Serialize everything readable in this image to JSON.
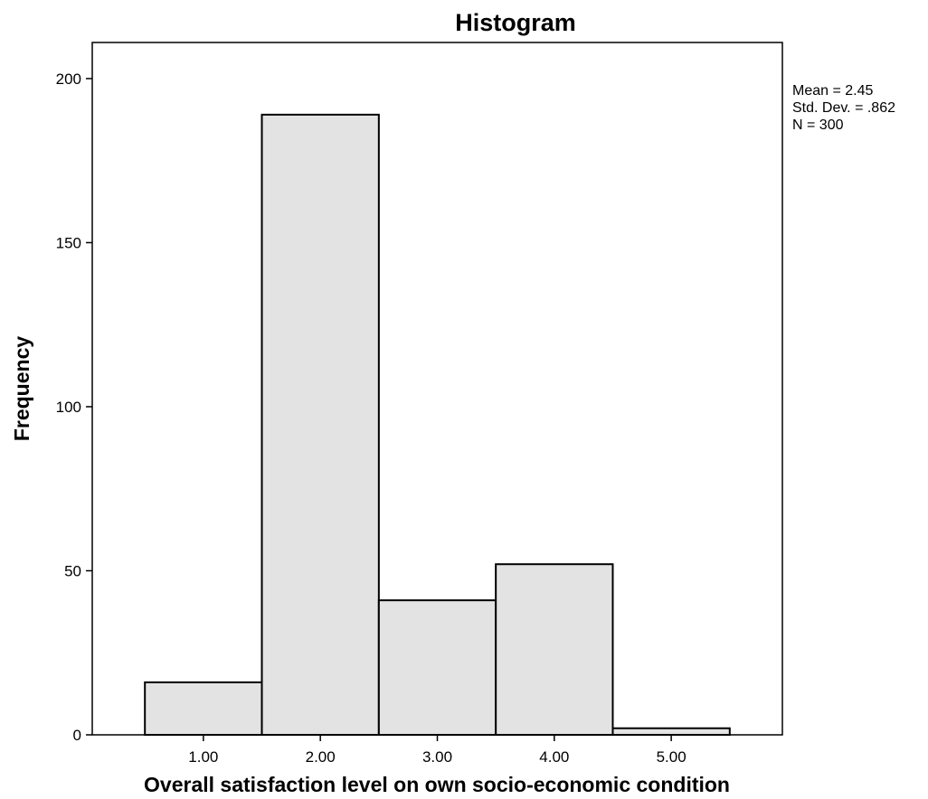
{
  "chart_data": {
    "type": "bar",
    "title": "Histogram",
    "xlabel": "Overall satisfaction level on own socio-economic condition",
    "ylabel": "Frequency",
    "categories": [
      "1.00",
      "2.00",
      "3.00",
      "4.00",
      "5.00"
    ],
    "values": [
      16,
      189,
      41,
      52,
      2
    ],
    "x_centers": [
      1,
      2,
      3,
      4,
      5
    ],
    "bin_width": 1,
    "xlim": [
      0.05,
      5.95
    ],
    "ylim": [
      0,
      211
    ],
    "y_ticks": [
      0,
      50,
      100,
      150,
      200
    ],
    "y_tick_labels": [
      "0",
      "50",
      "100",
      "150",
      "200"
    ],
    "grid": false,
    "bar_color": "#e3e3e3",
    "stats": {
      "mean": "Mean = 2.45",
      "std_dev": "Std. Dev. = .862",
      "n": "N = 300"
    }
  }
}
